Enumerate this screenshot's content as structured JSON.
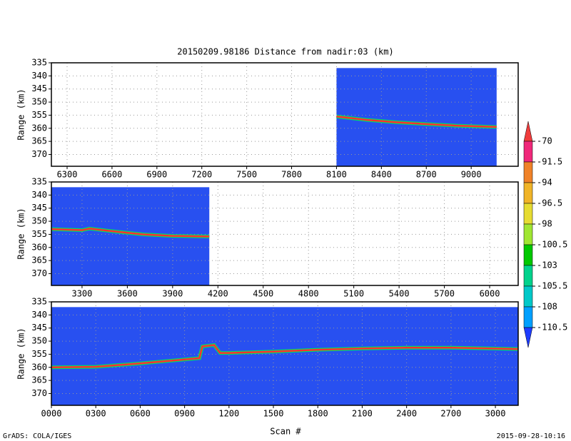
{
  "title": "20150209.98186    Distance from nadir:03 (km)",
  "xlabel": "Scan #",
  "footer_left": "GrADS: COLA/IGES",
  "footer_right": "2015-09-28-10:16",
  "colorbar": {
    "levels": [
      -70,
      -91.5,
      -94,
      -96.5,
      -98,
      -100.5,
      -103,
      -105.5,
      -108,
      -110.5
    ],
    "colors": [
      "#f03c3c",
      "#f0287a",
      "#f08228",
      "#f0b428",
      "#e6dc32",
      "#a0e632",
      "#00c800",
      "#00d28c",
      "#00c8c8",
      "#00a0ff",
      "#1e3cff"
    ]
  },
  "chart_data": [
    {
      "type": "line",
      "ylabel": "Range (km)",
      "grid": true,
      "color": "#ff3030",
      "background": "#2850f0",
      "data_xrange": [
        8100,
        9170
      ],
      "data_top": 337,
      "xlim": [
        6195,
        9314
      ],
      "xticks": [
        6300,
        6600,
        6900,
        7200,
        7500,
        7800,
        8100,
        8400,
        8700,
        9000
      ],
      "ylim": [
        374.5,
        335
      ],
      "yticks": [
        335,
        340,
        345,
        350,
        355,
        360,
        365,
        370
      ],
      "x": [
        8100,
        8300,
        8500,
        8700,
        8900,
        9170
      ],
      "values": [
        355.5,
        356.8,
        357.7,
        358.4,
        359,
        359.5
      ]
    },
    {
      "type": "line",
      "ylabel": "Range (km)",
      "grid": true,
      "color": "#ff3030",
      "background": "#2850f0",
      "data_xrange": [
        3097,
        4143
      ],
      "data_top": 337,
      "xlim": [
        3097,
        6189
      ],
      "xticks": [
        3300,
        3600,
        3900,
        4200,
        4500,
        4800,
        5100,
        5400,
        5700,
        6000
      ],
      "ylim": [
        374.5,
        335
      ],
      "yticks": [
        335,
        340,
        345,
        350,
        355,
        360,
        365,
        370
      ],
      "x": [
        3097,
        3300,
        3350,
        3500,
        3700,
        3900,
        4143
      ],
      "values": [
        353,
        353.4,
        352.8,
        353.8,
        355,
        355.6,
        355.8
      ]
    },
    {
      "type": "line",
      "ylabel": "Range (km)",
      "grid": true,
      "color": "#ff3030",
      "background": "#2850f0",
      "data_xrange": [
        0,
        3154
      ],
      "data_top": 337,
      "xlim": [
        0,
        3154
      ],
      "xticks": [
        {
          "value": 0,
          "label": "0000"
        },
        {
          "value": 300,
          "label": "0300"
        },
        {
          "value": 600,
          "label": "0600"
        },
        {
          "value": 900,
          "label": "0900"
        },
        1200,
        1500,
        1800,
        2100,
        2400,
        2700,
        3000
      ],
      "ylim": [
        374.5,
        335
      ],
      "yticks": [
        335,
        340,
        345,
        350,
        355,
        360,
        365,
        370
      ],
      "x": [
        0,
        300,
        600,
        900,
        1000,
        1020,
        1100,
        1140,
        1200,
        1500,
        1800,
        2100,
        2400,
        2700,
        3154
      ],
      "values": [
        360,
        359.8,
        358.5,
        357,
        356.5,
        352,
        351.5,
        354.5,
        354.5,
        354,
        353.3,
        352.8,
        352.5,
        352.5,
        353
      ]
    }
  ]
}
